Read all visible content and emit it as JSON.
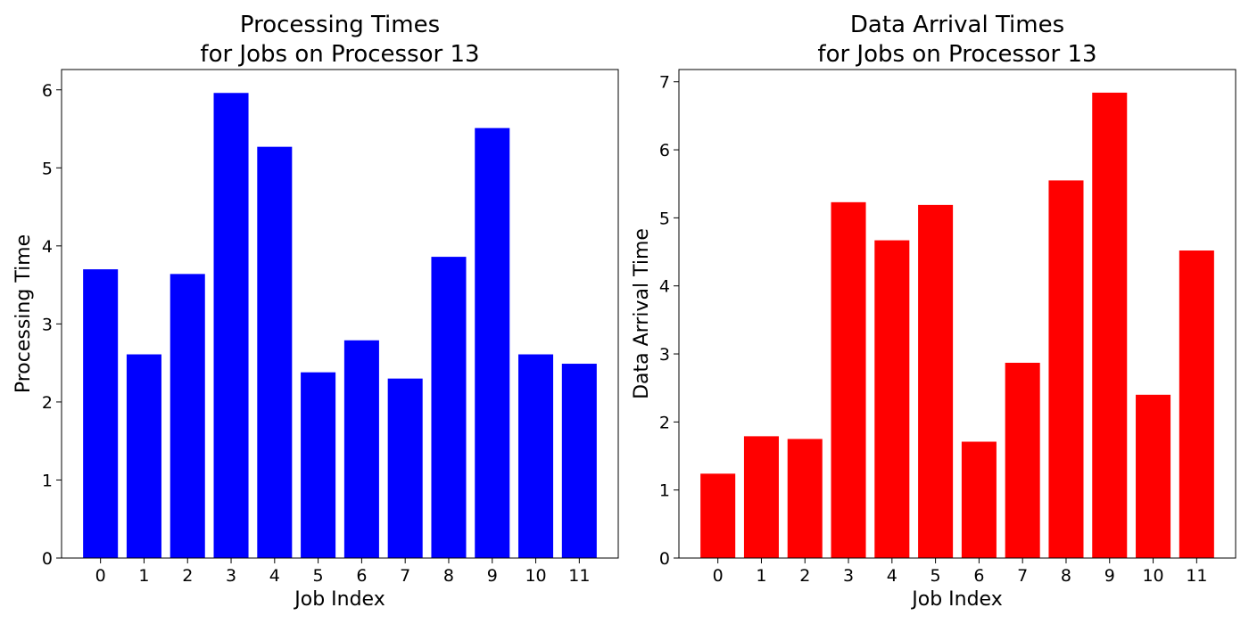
{
  "chart_data": [
    {
      "type": "bar",
      "title_lines": [
        "Processing Times",
        "for Jobs on Processor 13"
      ],
      "xlabel": "Job Index",
      "ylabel": "Processing Time",
      "categories": [
        "0",
        "1",
        "2",
        "3",
        "4",
        "5",
        "6",
        "7",
        "8",
        "9",
        "10",
        "11"
      ],
      "values": [
        3.7,
        2.61,
        3.64,
        5.96,
        5.27,
        2.38,
        2.79,
        2.3,
        3.86,
        5.51,
        2.61,
        2.49
      ],
      "yticks": [
        "0",
        "1",
        "2",
        "3",
        "4",
        "5",
        "6"
      ],
      "ylim": [
        0,
        6.26
      ],
      "color": "#0000ff",
      "grid": false,
      "legend": "none"
    },
    {
      "type": "bar",
      "title_lines": [
        "Data Arrival Times",
        "for Jobs on Processor 13"
      ],
      "xlabel": "Job Index",
      "ylabel": "Data Arrival Time",
      "categories": [
        "0",
        "1",
        "2",
        "3",
        "4",
        "5",
        "6",
        "7",
        "8",
        "9",
        "10",
        "11"
      ],
      "values": [
        1.24,
        1.79,
        1.75,
        5.23,
        4.67,
        5.19,
        1.71,
        2.87,
        5.55,
        6.84,
        2.4,
        4.52
      ],
      "yticks": [
        "0",
        "1",
        "2",
        "3",
        "4",
        "5",
        "6",
        "7"
      ],
      "ylim": [
        0,
        7.18
      ],
      "color": "#ff0000",
      "grid": false,
      "legend": "none"
    }
  ]
}
